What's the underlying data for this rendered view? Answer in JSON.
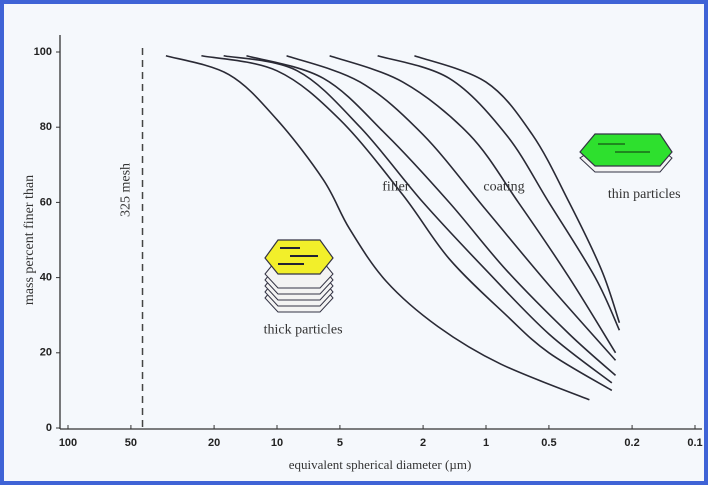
{
  "chart_data": {
    "type": "line",
    "x_label": "equivalent spherical diameter (µm)",
    "y_label": "mass percent finer than",
    "xscale": "log",
    "xlim": [
      100,
      0.1
    ],
    "ylim": [
      0,
      100
    ],
    "xticks": [
      100,
      50,
      20,
      10,
      5,
      2,
      1,
      0.5,
      0.2,
      0.1
    ],
    "yticks": [
      0,
      20,
      40,
      60,
      80,
      100
    ],
    "reference_lines": [
      {
        "x": 44,
        "label": "325 mesh"
      }
    ],
    "annotations": [
      {
        "text": "filler",
        "x": 2.7,
        "y": 64
      },
      {
        "text": "coating",
        "x": 0.82,
        "y": 64
      },
      {
        "text": "thin particles",
        "x": 0.175,
        "y": 62
      },
      {
        "text": "thick particles",
        "x": 7.5,
        "y": 26
      }
    ],
    "series": [
      {
        "color": "#2a2a35",
        "x": [
          34,
          17,
          10,
          6,
          4.5,
          3,
          1.7,
          0.85,
          0.32
        ],
        "values": [
          99,
          94,
          82,
          66,
          53,
          39,
          27,
          17,
          7.5
        ]
      },
      {
        "color": "#2a2a35",
        "x": [
          23,
          10,
          5,
          2.5,
          1.5,
          0.8,
          0.5,
          0.25
        ],
        "values": [
          99,
          95,
          82,
          62,
          45,
          30,
          20,
          10
        ]
      },
      {
        "color": "#2a2a35",
        "x": [
          18,
          8,
          4,
          2,
          1,
          0.5,
          0.25
        ],
        "values": [
          99,
          95,
          80,
          60,
          42,
          25,
          12
        ]
      },
      {
        "color": "#2a2a35",
        "x": [
          14,
          6,
          3,
          1.5,
          0.8,
          0.4,
          0.24
        ],
        "values": [
          99,
          93,
          78,
          60,
          42,
          25,
          14
        ]
      },
      {
        "color": "#2a2a35",
        "x": [
          9,
          4,
          2,
          1,
          0.5,
          0.24
        ],
        "values": [
          99,
          92,
          78,
          58,
          38,
          18
        ]
      },
      {
        "color": "#2a2a35",
        "x": [
          5.6,
          2.5,
          1.2,
          0.7,
          0.4,
          0.24
        ],
        "values": [
          99,
          92,
          78,
          60,
          40,
          20
        ]
      },
      {
        "color": "#2a2a35",
        "x": [
          3.3,
          1.5,
          0.8,
          0.5,
          0.3,
          0.23
        ],
        "values": [
          99,
          93,
          78,
          60,
          40,
          26
        ]
      },
      {
        "color": "#2a2a35",
        "x": [
          2.2,
          1,
          0.6,
          0.4,
          0.28,
          0.23
        ],
        "values": [
          99,
          92,
          78,
          60,
          42,
          28
        ]
      }
    ]
  }
}
